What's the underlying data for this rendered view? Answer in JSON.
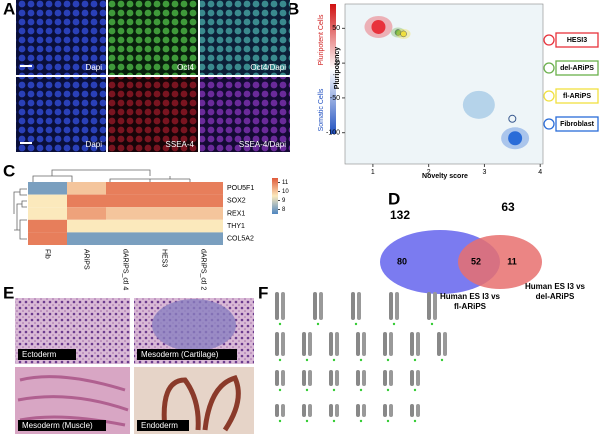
{
  "panels": {
    "a": "A",
    "b": "B",
    "c": "C",
    "d": "D",
    "e": "E",
    "f": "F"
  },
  "panel_a": {
    "images": [
      "Dapi",
      "Oct4",
      "Oct4/Dapi",
      "Dapi",
      "SSEA-4",
      "SSEA-4/Dapi"
    ]
  },
  "panel_b": {
    "colorbar_top": "Pluripotent Cells",
    "colorbar_bottom": "Somatic Cells",
    "y_label": "Pluripotency",
    "x_label": "Novelty score",
    "xlim": [
      0.5,
      4.05
    ],
    "ylim": [
      -145,
      85
    ],
    "xticks": [
      1,
      2,
      3,
      4
    ],
    "yticks": [
      50,
      0,
      -50,
      -100
    ],
    "clusters": [
      {
        "name": "HESI3",
        "color": "#e8323c",
        "x": 1.1,
        "y": 52
      },
      {
        "name": "del-ARiPS",
        "color": "#6ab04c",
        "x": 1.45,
        "y": 44
      },
      {
        "name": "fl-ARiPS",
        "color": "#f0e040",
        "x": 1.55,
        "y": 42
      },
      {
        "name": "Fibroblast",
        "color": "#2a6cd8",
        "x": 3.55,
        "y": -108
      }
    ]
  },
  "panel_c": {
    "columns": [
      "Fib",
      "ARiPS",
      "dARiPS_ctl 4",
      "HES3",
      "dARiPS_ctl 2"
    ],
    "rows": [
      {
        "name": "POU5F1",
        "values": [
          8,
          10,
          11,
          11,
          11
        ]
      },
      {
        "name": "SOX2",
        "values": [
          9.5,
          11,
          11,
          11,
          11
        ]
      },
      {
        "name": "REX1",
        "values": [
          9.5,
          10.5,
          10,
          10,
          10
        ]
      },
      {
        "name": "THY1",
        "values": [
          11,
          9.5,
          9.5,
          9.5,
          9.5
        ]
      },
      {
        "name": "COL5A2",
        "values": [
          11,
          8,
          8,
          8,
          8
        ]
      }
    ],
    "colorbar_lim": [
      7.5,
      11.5
    ],
    "colorbar_ticks": [
      11,
      10,
      9,
      8
    ]
  },
  "panel_d": {
    "left_total": 132,
    "right_total": 63,
    "left_only": 80,
    "shared": 52,
    "right_only": 11,
    "left_label": [
      "Human ES I3 vs",
      "fl-ARiPS"
    ],
    "right_label": [
      "Human ES I3 vs",
      "del-ARiPS"
    ]
  },
  "panel_e": {
    "images": [
      "Ectoderm",
      "Mesoderm (Cartilage)",
      "Mesoderm (Muscle)",
      "Endoderm"
    ]
  }
}
